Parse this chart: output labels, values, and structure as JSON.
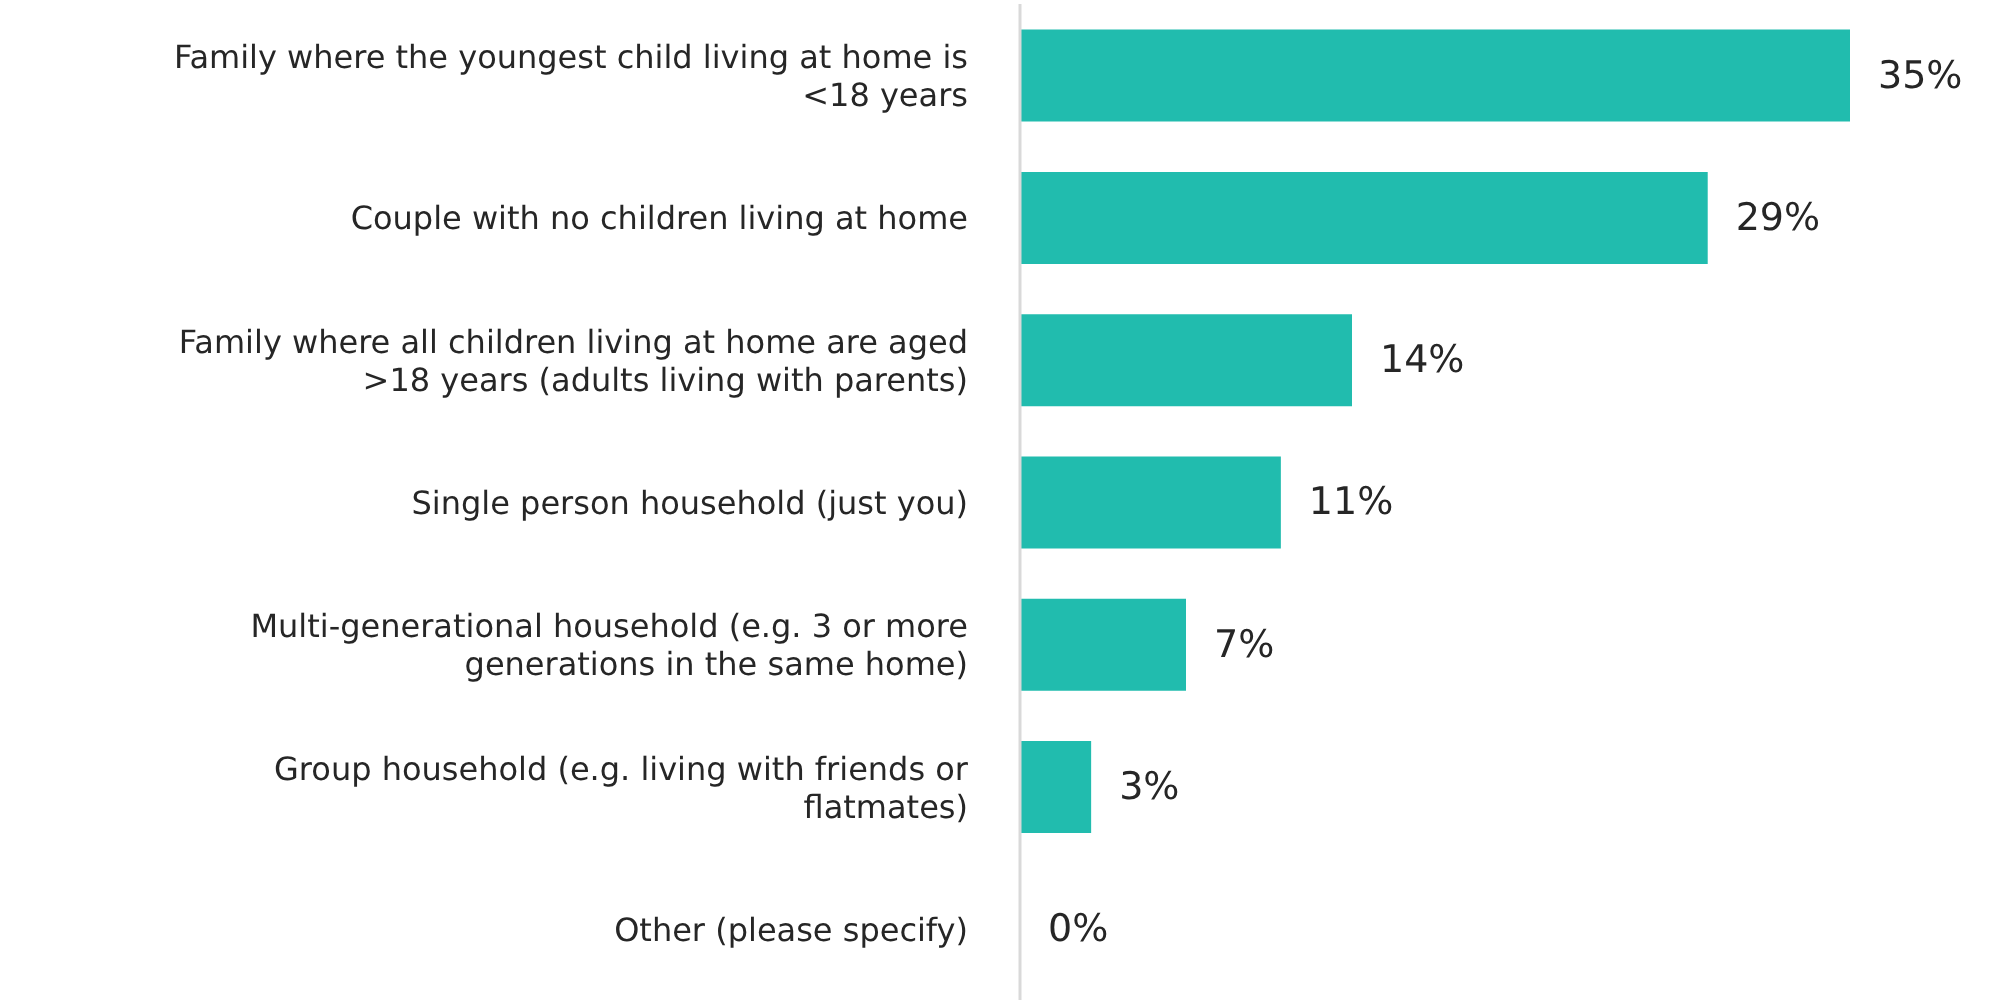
{
  "chart_data": {
    "type": "bar",
    "orientation": "horizontal",
    "categories": [
      "Family where the youngest child living at home is <18 years",
      "Couple with no children living at home",
      "Family where all children living at home are aged >18 years (adults living with parents)",
      "Single person household (just you)",
      "Multi-generational household (e.g. 3 or more generations in the same home)",
      "Group household (e.g. living with friends or flatmates)",
      "Other (please specify)"
    ],
    "series": [
      {
        "color": "#21bcae",
        "values": [
          35,
          29,
          14,
          11,
          7,
          3,
          0
        ],
        "value_labels": [
          "35%",
          "29%",
          "14%",
          "11%",
          "7%",
          "3%",
          "0%"
        ]
      }
    ]
  }
}
